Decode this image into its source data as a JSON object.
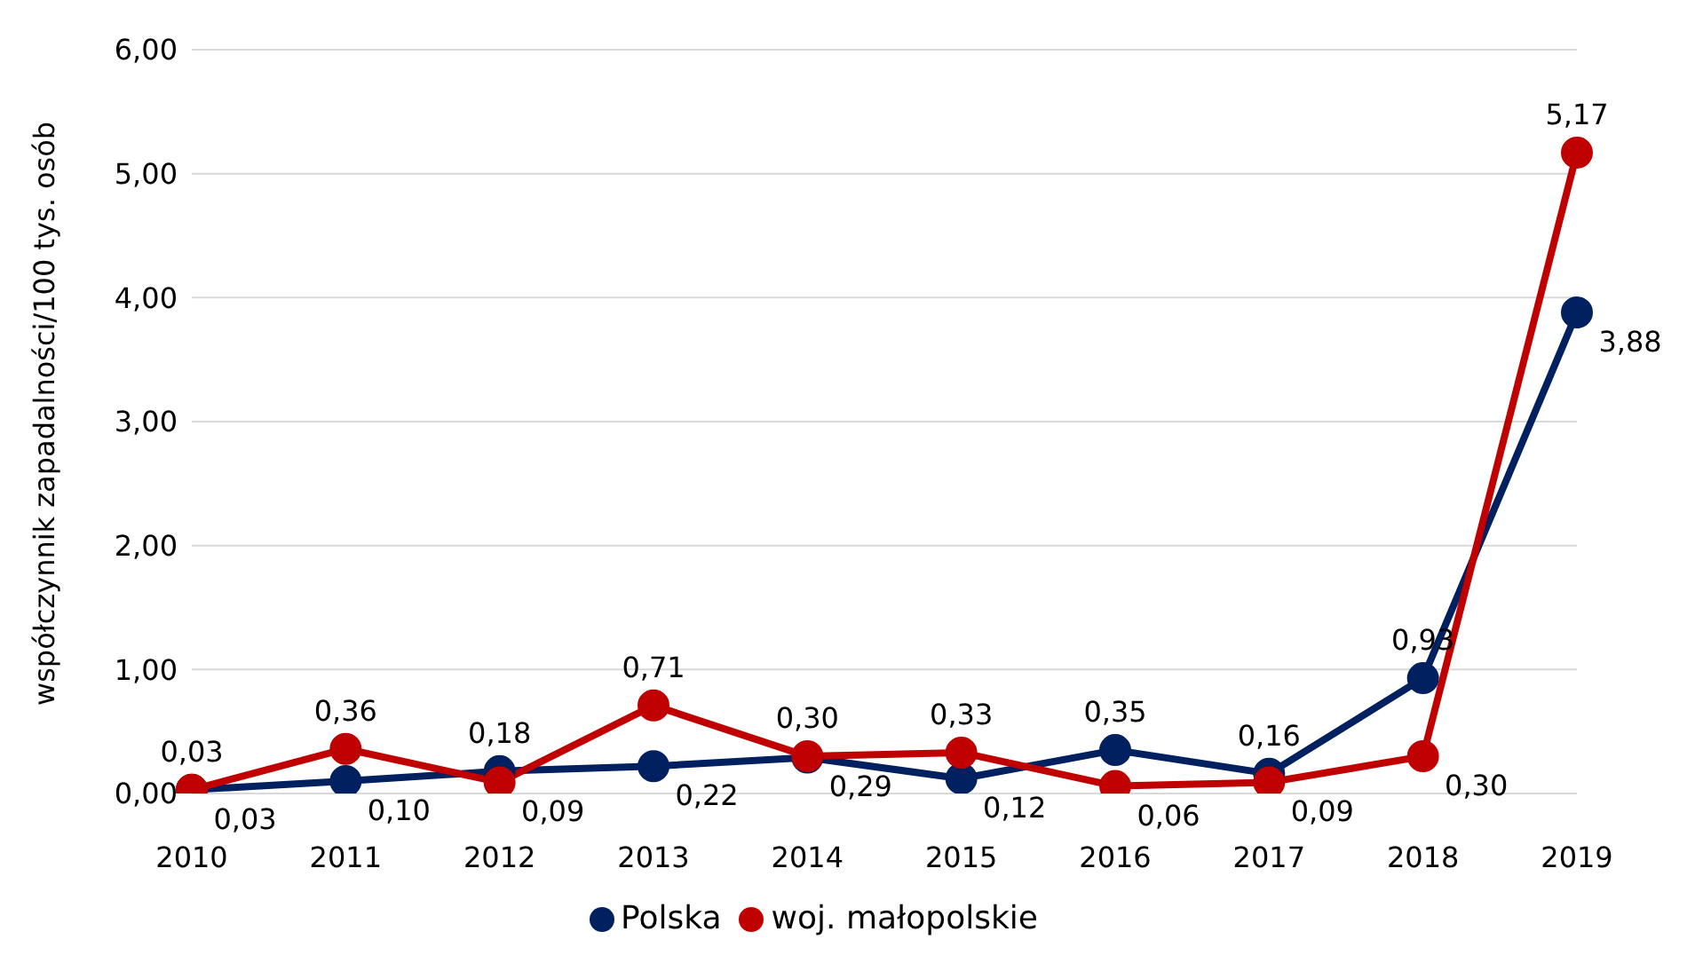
{
  "chart_data": {
    "type": "line",
    "ylabel": "współczynnik zapadalności/100 tys. osób",
    "categories": [
      "2010",
      "2011",
      "2012",
      "2013",
      "2014",
      "2015",
      "2016",
      "2017",
      "2018",
      "2019"
    ],
    "series": [
      {
        "name": "Polska",
        "color": "#002060",
        "values": [
          0.03,
          0.1,
          0.18,
          0.22,
          0.29,
          0.12,
          0.35,
          0.16,
          0.93,
          3.88
        ],
        "value_labels": [
          "0,03",
          "0,10",
          "0,18",
          "0,22",
          "0,29",
          "0,12",
          "0,35",
          "0,16",
          "0,93",
          "3,88"
        ]
      },
      {
        "name": "woj. małopolskie",
        "color": "#c00000",
        "values": [
          0.03,
          0.36,
          0.09,
          0.71,
          0.3,
          0.33,
          0.06,
          0.09,
          0.3,
          5.17
        ],
        "value_labels": [
          "0,03",
          "0,36",
          "0,09",
          "0,71",
          "0,30",
          "0,33",
          "0,06",
          "0,09",
          "0,30",
          "5,17"
        ]
      }
    ],
    "ylim": [
      0,
      6
    ],
    "yticks": [
      {
        "value": 0,
        "label": "0,00"
      },
      {
        "value": 1,
        "label": "1,00"
      },
      {
        "value": 2,
        "label": "2,00"
      },
      {
        "value": 3,
        "label": "3,00"
      },
      {
        "value": 4,
        "label": "4,00"
      },
      {
        "value": 5,
        "label": "5,00"
      },
      {
        "value": 6,
        "label": "6,00"
      }
    ],
    "grid": "y",
    "legend": "bottom",
    "marker": "circle",
    "line_style": "solid"
  }
}
